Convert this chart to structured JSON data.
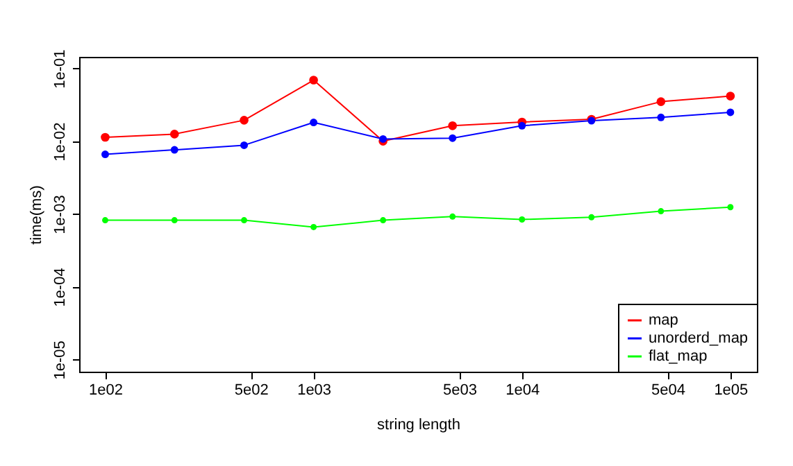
{
  "chart_data": {
    "type": "line",
    "xlabel": "string length",
    "ylabel": "time(ms)",
    "log": "xy",
    "x": [
      100,
      215,
      464,
      1000,
      2154,
      4642,
      10000,
      21544,
      46416,
      100000
    ],
    "xlim": [
      75,
      134000
    ],
    "xticks": [
      {
        "value": 100,
        "label": "1e02"
      },
      {
        "value": 500,
        "label": "5e02"
      },
      {
        "value": 1000,
        "label": "1e03"
      },
      {
        "value": 5000,
        "label": "5e03"
      },
      {
        "value": 10000,
        "label": "1e04"
      },
      {
        "value": 50000,
        "label": "5e04"
      },
      {
        "value": 100000,
        "label": "1e05"
      }
    ],
    "ylim": [
      6.8e-06,
      0.144
    ],
    "yticks": [
      {
        "value": 1e-05,
        "label": "1e-05"
      },
      {
        "value": 0.0001,
        "label": "1e-04"
      },
      {
        "value": 0.001,
        "label": "1e-03"
      },
      {
        "value": 0.01,
        "label": "1e-02"
      },
      {
        "value": 0.1,
        "label": "1e-01"
      }
    ],
    "series": [
      {
        "name": "map",
        "color": "#ff0000",
        "values": [
          0.0113,
          0.0125,
          0.0194,
          0.069,
          0.01,
          0.0163,
          0.0183,
          0.02,
          0.0349,
          0.0416
        ]
      },
      {
        "name": "unorderd_map",
        "color": "#0000ff",
        "values": [
          0.0066,
          0.0076,
          0.0088,
          0.0181,
          0.0107,
          0.011,
          0.0163,
          0.0191,
          0.0212,
          0.0249
        ]
      },
      {
        "name": "flat_map",
        "color": "#00ff00",
        "values": [
          0.00082,
          0.00082,
          0.00082,
          0.00066,
          0.00082,
          0.00092,
          0.00084,
          0.0009,
          0.00109,
          0.00124
        ]
      }
    ],
    "legend": "bottom right",
    "marker": "circle",
    "line_style": "solid",
    "grid": false
  }
}
